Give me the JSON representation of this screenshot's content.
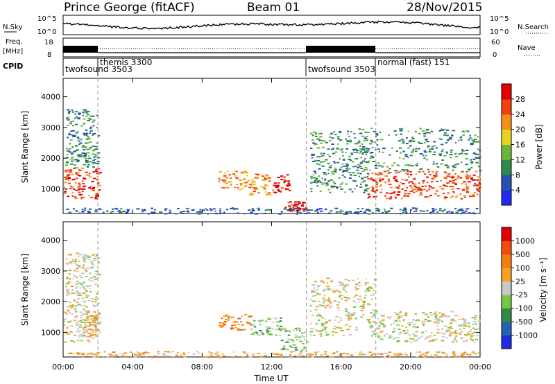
{
  "header": {
    "station": "Prince George (fitACF)",
    "beam": "Beam 01",
    "date": "28/Nov/2015"
  },
  "top_panels": {
    "nsky_label": "N.Sky",
    "nsky_ticks": [
      "10^5",
      "10^0"
    ],
    "nsearch_label": "N.Search",
    "nsearch_ticks": [
      "10^5",
      "10^0"
    ],
    "freq_label_1": "Freq.",
    "freq_label_2": "[MHz]",
    "freq_ticks": [
      "18",
      "8"
    ],
    "nave_label": "Nave",
    "nave_ticks": [
      "60",
      "0"
    ],
    "cpid_label": "CPID",
    "cpid_modes": [
      {
        "name": "twofsound 3503",
        "start_hour": 0,
        "row": 2
      },
      {
        "name": "themis 3300",
        "start_hour": 2,
        "row": 1
      },
      {
        "name": "twofsound 3503",
        "start_hour": 14,
        "row": 2
      },
      {
        "name": "normal (fast) 151",
        "start_hour": 18,
        "row": 1
      }
    ]
  },
  "chart_data": [
    {
      "type": "heatmap",
      "panel": "power",
      "xlabel": "",
      "ylabel": "Slant Range [km]",
      "x_range_hours": [
        0,
        24
      ],
      "ylim": [
        200,
        4600
      ],
      "yticks": [
        "1000",
        "2000",
        "3000",
        "4000"
      ],
      "colorbar_label": "Power [dB]",
      "colorbar_ticks": [
        "4",
        "8",
        "12",
        "16",
        "20",
        "24",
        "28"
      ],
      "colorbar_colors": [
        "#1f2cf0",
        "#2850b0",
        "#2e8a4a",
        "#6ab53c",
        "#e8d21c",
        "#f79018",
        "#f04010",
        "#e00000"
      ],
      "scatter_regions": [
        {
          "t0": 0.0,
          "t1": 2.1,
          "r0": 700,
          "r1": 1700,
          "level": 6
        },
        {
          "t0": 0.1,
          "t1": 2.0,
          "r0": 1700,
          "r1": 3600,
          "level": 2
        },
        {
          "t0": 8.9,
          "t1": 10.5,
          "r0": 1000,
          "r1": 1600,
          "level": 5
        },
        {
          "t0": 10.5,
          "t1": 12.0,
          "r0": 800,
          "r1": 1500,
          "level": 5
        },
        {
          "t0": 12.0,
          "t1": 13.0,
          "r0": 900,
          "r1": 1500,
          "level": 7
        },
        {
          "t0": 12.7,
          "t1": 14.0,
          "r0": 300,
          "r1": 600,
          "level": 7
        },
        {
          "t0": 14.2,
          "t1": 17.5,
          "r0": 900,
          "r1": 2900,
          "level": 2
        },
        {
          "t0": 17.5,
          "t1": 24.0,
          "r0": 700,
          "r1": 1600,
          "level": 6
        },
        {
          "t0": 17.0,
          "t1": 24.0,
          "r0": 1600,
          "r1": 3000,
          "level": 2
        },
        {
          "t0": 0.0,
          "t1": 24.0,
          "r0": 200,
          "r1": 400,
          "level": 1
        }
      ]
    },
    {
      "type": "heatmap",
      "panel": "velocity",
      "xlabel": "Time UT",
      "ylabel": "Slant Range [km]",
      "x_range_hours": [
        0,
        24
      ],
      "xticks": [
        "00:00",
        "04:00",
        "08:00",
        "12:00",
        "16:00",
        "20:00",
        "00:00"
      ],
      "ylim": [
        200,
        4600
      ],
      "yticks": [
        "1000",
        "2000",
        "3000",
        "4000"
      ],
      "colorbar_label": "Velocity [m s⁻¹]",
      "colorbar_ticks": [
        "1000",
        "500",
        "100",
        "25",
        "-25",
        "-100",
        "-500",
        "-1000"
      ],
      "colorbar_colors": [
        "#1c2ce0",
        "#2860b0",
        "#2f8a44",
        "#74c842",
        "#c8c8c8",
        "#f8a020",
        "#f47e10",
        "#f04c10",
        "#e00000"
      ],
      "scatter_regions": [
        {
          "t0": 0.0,
          "t1": 2.1,
          "r0": 700,
          "r1": 1700,
          "level": 4
        },
        {
          "t0": 1.0,
          "t1": 2.1,
          "r0": 900,
          "r1": 1700,
          "level": 5
        },
        {
          "t0": 0.1,
          "t1": 2.0,
          "r0": 1700,
          "r1": 3600,
          "level": 4
        },
        {
          "t0": 8.9,
          "t1": 10.8,
          "r0": 1100,
          "r1": 1600,
          "level": 6
        },
        {
          "t0": 10.8,
          "t1": 12.5,
          "r0": 900,
          "r1": 1500,
          "level": 3
        },
        {
          "t0": 12.5,
          "t1": 14.0,
          "r0": 400,
          "r1": 1200,
          "level": 3
        },
        {
          "t0": 14.2,
          "t1": 18.0,
          "r0": 900,
          "r1": 2800,
          "level": 4
        },
        {
          "t0": 18.0,
          "t1": 24.0,
          "r0": 700,
          "r1": 1700,
          "level": 4
        },
        {
          "t0": 0.0,
          "t1": 24.0,
          "r0": 200,
          "r1": 400,
          "level": 5
        }
      ]
    }
  ],
  "vertical_markers_hours": [
    2,
    14,
    18
  ]
}
